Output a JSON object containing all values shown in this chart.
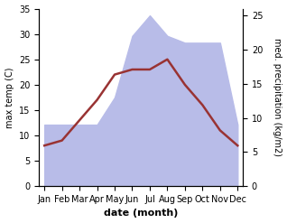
{
  "months": [
    "Jan",
    "Feb",
    "Mar",
    "Apr",
    "May",
    "Jun",
    "Jul",
    "Aug",
    "Sep",
    "Oct",
    "Nov",
    "Dec"
  ],
  "temp": [
    8,
    9,
    13,
    17,
    22,
    23,
    23,
    25,
    20,
    16,
    11,
    8
  ],
  "precip": [
    9,
    9,
    9,
    9,
    13,
    22,
    25,
    22,
    21,
    21,
    21,
    9
  ],
  "temp_color": "#993333",
  "precip_fill_color": "#b8bce8",
  "temp_ylim": [
    0,
    35
  ],
  "precip_ylim": [
    0,
    26
  ],
  "temp_yticks": [
    0,
    5,
    10,
    15,
    20,
    25,
    30,
    35
  ],
  "precip_yticks": [
    0,
    5,
    10,
    15,
    20,
    25
  ],
  "ylabel_left": "max temp (C)",
  "ylabel_right": "med. precipitation (kg/m2)",
  "xlabel": "date (month)",
  "xlabel_fontsize": 8,
  "ylabel_fontsize": 7,
  "tick_fontsize": 7,
  "linewidth": 1.8
}
